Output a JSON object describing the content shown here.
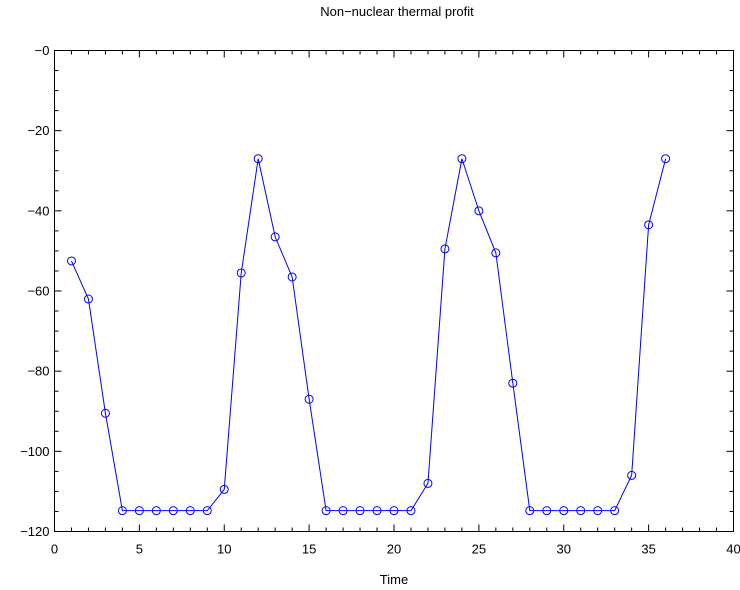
{
  "chart_data": {
    "type": "line",
    "title": "Non−nuclear thermal profit",
    "xlabel": "Time",
    "ylabel": "",
    "xlim": [
      0,
      40
    ],
    "ylim": [
      -120,
      0
    ],
    "x_ticks": [
      0,
      5,
      10,
      15,
      20,
      25,
      30,
      35,
      40
    ],
    "x_tick_labels": [
      "0",
      "5",
      "10",
      "15",
      "20",
      "25",
      "30",
      "35",
      "40"
    ],
    "y_ticks": [
      0,
      -20,
      -40,
      -60,
      -80,
      -100,
      -120
    ],
    "y_tick_labels": [
      "−0",
      "−20",
      "−40",
      "−60",
      "−80",
      "−100",
      "−120"
    ],
    "grid": false,
    "marker": "circle",
    "colors": {
      "series": "#0000ff",
      "axis": "#000000"
    },
    "series": [
      {
        "x": [
          1,
          2,
          3,
          4,
          5,
          6,
          7,
          8,
          9,
          10,
          11,
          12,
          13,
          14,
          15,
          16,
          17,
          18,
          19,
          20,
          21,
          22,
          23,
          24,
          25,
          26,
          27,
          28,
          29,
          30,
          31,
          32,
          33,
          34,
          35,
          36
        ],
        "values": [
          -52.5,
          -62,
          -90.5,
          -114.8,
          -114.8,
          -114.8,
          -114.8,
          -114.8,
          -114.8,
          -109.5,
          -55.5,
          -27,
          -46.5,
          -56.5,
          -87,
          -114.8,
          -114.8,
          -114.8,
          -114.8,
          -114.8,
          -114.8,
          -108,
          -49.5,
          -27,
          -40,
          -50.5,
          -83,
          -114.8,
          -114.8,
          -114.8,
          -114.8,
          -114.8,
          -114.8,
          -106,
          -43.5,
          -27
        ]
      }
    ]
  }
}
